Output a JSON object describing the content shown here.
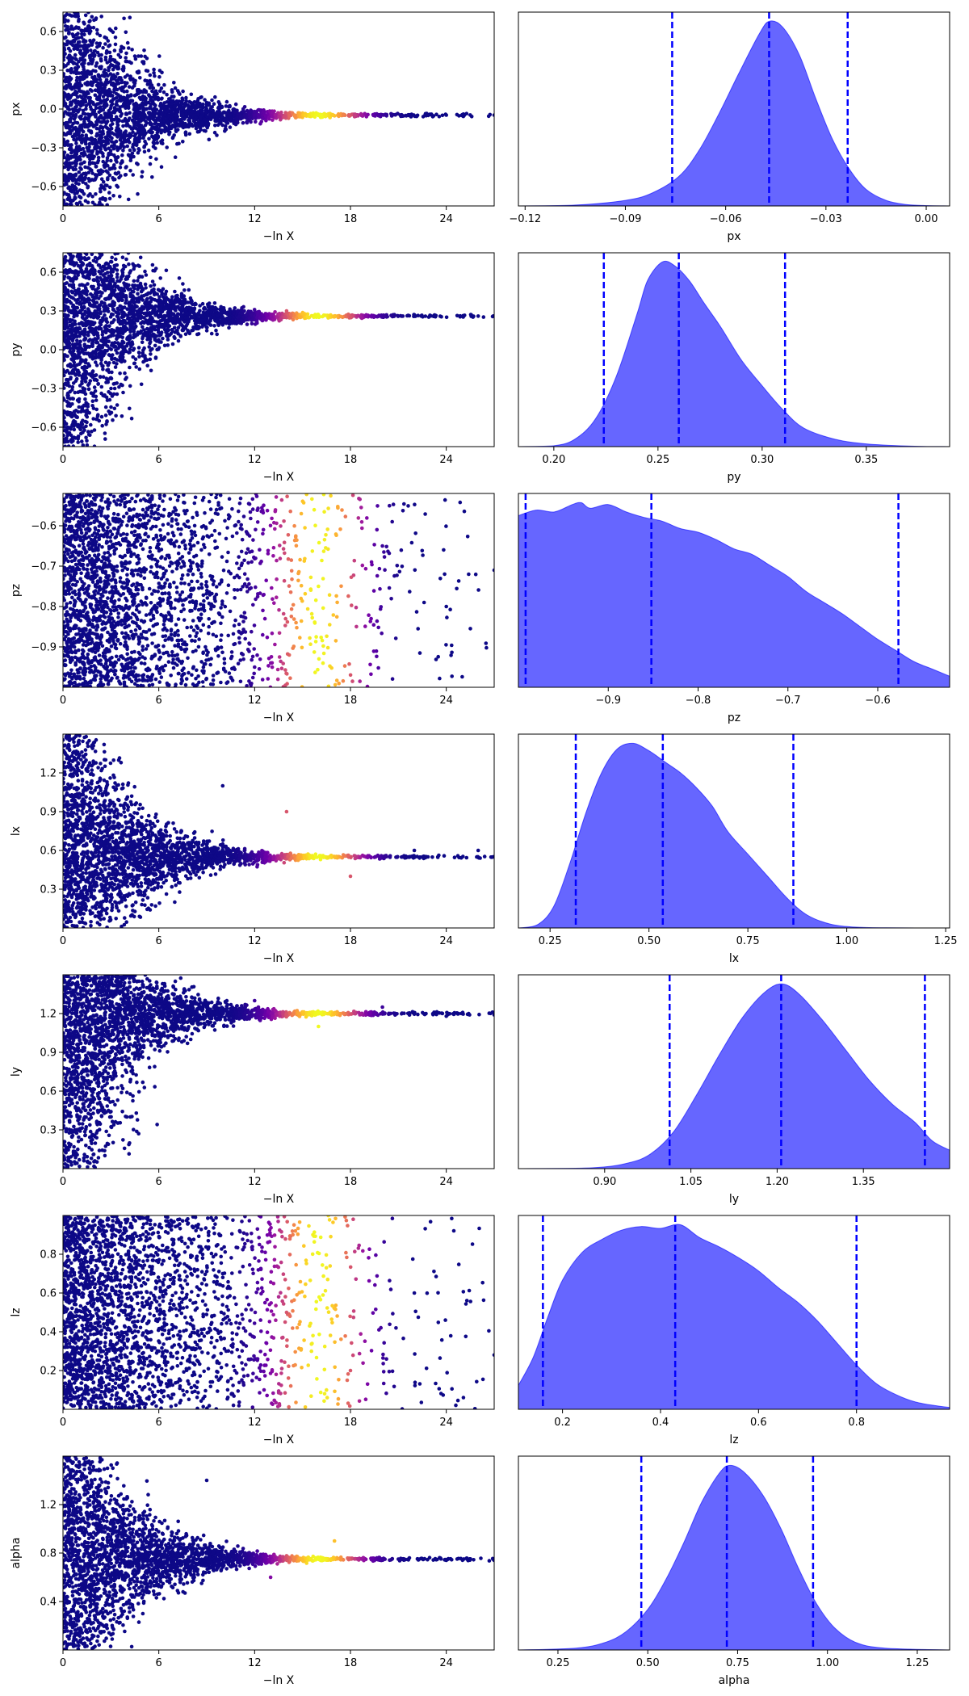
{
  "chart_data": [
    {
      "type": "scatter",
      "panel": "trace",
      "parameter": "px",
      "xlabel": "−ln X",
      "ylabel": "px",
      "xlim": [
        0,
        27
      ],
      "ylim": [
        -0.75,
        0.75
      ],
      "xticks": [
        0,
        6,
        12,
        18,
        24
      ],
      "yticks": [
        -0.6,
        -0.3,
        0.0,
        0.3,
        0.6
      ],
      "ytick_labels": [
        "−0.6",
        "−0.3",
        "0.0",
        "0.3",
        "0.6"
      ],
      "center": -0.047,
      "colormap": "plasma",
      "weight_peak_x": 16,
      "points": [
        [
          0.5,
          0.62
        ],
        [
          1.2,
          -0.55
        ],
        [
          2.0,
          0.45
        ],
        [
          3.0,
          -0.4
        ],
        [
          4.5,
          0.2
        ],
        [
          6.0,
          -0.12
        ],
        [
          9.0,
          0.05
        ],
        [
          12.0,
          -0.02
        ],
        [
          16.0,
          -0.05
        ],
        [
          20.0,
          -0.045
        ],
        [
          24.0,
          -0.047
        ],
        [
          27.0,
          -0.047
        ]
      ]
    },
    {
      "type": "area",
      "panel": "marginal",
      "parameter": "px",
      "xlabel": "px",
      "xlim": [
        -0.122,
        0.007
      ],
      "xticks": [
        -0.12,
        -0.09,
        -0.06,
        -0.03,
        0.0
      ],
      "xtick_labels": [
        "−0.12",
        "−0.09",
        "−0.06",
        "−0.03",
        "0.00"
      ],
      "quantiles": [
        -0.076,
        -0.047,
        -0.0235
      ],
      "fill_color": "#0000ff",
      "line_color": "#0000ff",
      "x": [
        -0.122,
        -0.105,
        -0.09,
        -0.082,
        -0.074,
        -0.068,
        -0.062,
        -0.056,
        -0.05,
        -0.047,
        -0.043,
        -0.038,
        -0.033,
        -0.028,
        -0.023,
        -0.018,
        -0.012,
        -0.006,
        0.0,
        0.007
      ],
      "density": [
        0,
        0.005,
        0.03,
        0.07,
        0.16,
        0.3,
        0.5,
        0.72,
        0.93,
        1.0,
        0.97,
        0.82,
        0.58,
        0.36,
        0.2,
        0.09,
        0.03,
        0.008,
        0.002,
        0
      ]
    },
    {
      "type": "scatter",
      "panel": "trace",
      "parameter": "py",
      "xlabel": "−ln X",
      "ylabel": "py",
      "xlim": [
        0,
        27
      ],
      "ylim": [
        -0.75,
        0.75
      ],
      "xticks": [
        0,
        6,
        12,
        18,
        24
      ],
      "yticks": [
        -0.6,
        -0.3,
        0.0,
        0.3,
        0.6
      ],
      "ytick_labels": [
        "−0.6",
        "−0.3",
        "0.0",
        "0.3",
        "0.6"
      ],
      "center": 0.26,
      "colormap": "plasma",
      "weight_peak_x": 16,
      "points": [
        [
          0.5,
          -0.6
        ],
        [
          1.0,
          0.7
        ],
        [
          2.0,
          -0.2
        ],
        [
          3.0,
          0.6
        ],
        [
          5.0,
          0.1
        ],
        [
          7.0,
          0.45
        ],
        [
          10.0,
          0.2
        ],
        [
          14.0,
          0.3
        ],
        [
          18.0,
          0.25
        ],
        [
          22.0,
          0.27
        ],
        [
          26.0,
          0.26
        ]
      ]
    },
    {
      "type": "area",
      "panel": "marginal",
      "parameter": "py",
      "xlabel": "py",
      "xlim": [
        0.183,
        0.39
      ],
      "xticks": [
        0.2,
        0.25,
        0.3,
        0.35
      ],
      "xtick_labels": [
        "0.20",
        "0.25",
        "0.30",
        "0.35"
      ],
      "quantiles": [
        0.224,
        0.26,
        0.311
      ],
      "fill_color": "#0000ff",
      "line_color": "#0000ff",
      "x": [
        0.183,
        0.2,
        0.21,
        0.22,
        0.23,
        0.24,
        0.245,
        0.252,
        0.258,
        0.265,
        0.272,
        0.28,
        0.29,
        0.3,
        0.31,
        0.32,
        0.335,
        0.35,
        0.37,
        0.39
      ],
      "density": [
        0,
        0.005,
        0.04,
        0.15,
        0.38,
        0.72,
        0.9,
        1.0,
        0.98,
        0.9,
        0.78,
        0.65,
        0.47,
        0.33,
        0.2,
        0.1,
        0.04,
        0.015,
        0.003,
        0
      ]
    },
    {
      "type": "scatter",
      "panel": "trace",
      "parameter": "pz",
      "xlabel": "−ln X",
      "ylabel": "pz",
      "xlim": [
        0,
        27
      ],
      "ylim": [
        -1.0,
        -0.52
      ],
      "xticks": [
        0,
        6,
        12,
        18,
        24
      ],
      "yticks": [
        -0.9,
        -0.8,
        -0.7,
        -0.6
      ],
      "ytick_labels": [
        "−0.9",
        "−0.8",
        "−0.7",
        "−0.6"
      ],
      "colormap": "plasma",
      "weight_peak_x": 16,
      "points": [
        [
          1.0,
          -0.6
        ],
        [
          4.0,
          -0.85
        ],
        [
          8.0,
          -0.7
        ],
        [
          12.0,
          -0.95
        ],
        [
          16.0,
          -0.75
        ],
        [
          20.0,
          -0.65
        ],
        [
          24.0,
          -0.8
        ],
        [
          27.0,
          -0.71
        ]
      ]
    },
    {
      "type": "area",
      "panel": "marginal",
      "parameter": "pz",
      "xlabel": "pz",
      "xlim": [
        -1.0,
        -0.52
      ],
      "xticks": [
        -0.9,
        -0.8,
        -0.7,
        -0.6
      ],
      "xtick_labels": [
        "−0.9",
        "−0.8",
        "−0.7",
        "−0.6"
      ],
      "quantiles": [
        -0.992,
        -0.852,
        -0.577
      ],
      "fill_color": "#0000ff",
      "line_color": "#0000ff",
      "x": [
        -1.0,
        -0.98,
        -0.96,
        -0.94,
        -0.93,
        -0.92,
        -0.9,
        -0.88,
        -0.86,
        -0.84,
        -0.82,
        -0.8,
        -0.78,
        -0.76,
        -0.74,
        -0.72,
        -0.7,
        -0.68,
        -0.66,
        -0.64,
        -0.62,
        -0.6,
        -0.58,
        -0.56,
        -0.54,
        -0.52
      ],
      "density": [
        0.93,
        0.96,
        0.95,
        0.99,
        1.0,
        0.97,
        0.99,
        0.95,
        0.92,
        0.9,
        0.86,
        0.84,
        0.8,
        0.75,
        0.72,
        0.66,
        0.6,
        0.52,
        0.46,
        0.4,
        0.33,
        0.26,
        0.2,
        0.14,
        0.1,
        0.06
      ]
    },
    {
      "type": "scatter",
      "panel": "trace",
      "parameter": "lx",
      "xlabel": "−ln X",
      "ylabel": "lx",
      "xlim": [
        0,
        27
      ],
      "ylim": [
        0.0,
        1.5
      ],
      "xticks": [
        0,
        6,
        12,
        18,
        24
      ],
      "yticks": [
        0.3,
        0.6,
        0.9,
        1.2
      ],
      "ytick_labels": [
        "0.3",
        "0.6",
        "0.9",
        "1.2"
      ],
      "center": 0.55,
      "colormap": "plasma",
      "weight_peak_x": 16,
      "points": [
        [
          0.5,
          0.05
        ],
        [
          1.0,
          1.45
        ],
        [
          4.0,
          1.0
        ],
        [
          7.0,
          0.2
        ],
        [
          10.0,
          1.1
        ],
        [
          14.0,
          0.9
        ],
        [
          18.0,
          0.4
        ],
        [
          22.0,
          0.6
        ],
        [
          26.0,
          0.6
        ]
      ]
    },
    {
      "type": "area",
      "panel": "marginal",
      "parameter": "lx",
      "xlabel": "lx",
      "xlim": [
        0.17,
        1.26
      ],
      "xticks": [
        0.25,
        0.5,
        0.75,
        1.0,
        1.25
      ],
      "xtick_labels": [
        "0.25",
        "0.50",
        "0.75",
        "1.00",
        "1.25"
      ],
      "quantiles": [
        0.315,
        0.535,
        0.865
      ],
      "fill_color": "#0000ff",
      "line_color": "#0000ff",
      "x": [
        0.17,
        0.22,
        0.26,
        0.3,
        0.34,
        0.38,
        0.42,
        0.46,
        0.5,
        0.54,
        0.58,
        0.62,
        0.66,
        0.7,
        0.75,
        0.8,
        0.85,
        0.9,
        0.96,
        1.02,
        1.1,
        1.26
      ],
      "density": [
        0,
        0.02,
        0.12,
        0.35,
        0.62,
        0.84,
        0.97,
        1.0,
        0.96,
        0.9,
        0.84,
        0.76,
        0.66,
        0.52,
        0.4,
        0.28,
        0.16,
        0.07,
        0.02,
        0.005,
        0.001,
        0
      ]
    },
    {
      "type": "scatter",
      "panel": "trace",
      "parameter": "ly",
      "xlabel": "−ln X",
      "ylabel": "ly",
      "xlim": [
        0,
        27
      ],
      "ylim": [
        0.0,
        1.5
      ],
      "xticks": [
        0,
        6,
        12,
        18,
        24
      ],
      "yticks": [
        0.3,
        0.6,
        0.9,
        1.2
      ],
      "ytick_labels": [
        "0.3",
        "0.6",
        "0.9",
        "1.2"
      ],
      "center": 1.2,
      "colormap": "plasma",
      "weight_peak_x": 16,
      "points": [
        [
          0.5,
          0.05
        ],
        [
          2.0,
          1.45
        ],
        [
          4.0,
          0.4
        ],
        [
          8.0,
          1.0
        ],
        [
          12.0,
          1.3
        ],
        [
          16.0,
          1.1
        ],
        [
          20.0,
          1.25
        ],
        [
          24.0,
          1.18
        ],
        [
          27.0,
          1.19
        ]
      ]
    },
    {
      "type": "area",
      "panel": "marginal",
      "parameter": "ly",
      "xlabel": "ly",
      "xlim": [
        0.75,
        1.5
      ],
      "xticks": [
        0.9,
        1.05,
        1.2,
        1.35
      ],
      "xtick_labels": [
        "0.90",
        "1.05",
        "1.20",
        "1.35"
      ],
      "quantiles": [
        1.013,
        1.207,
        1.457
      ],
      "fill_color": "#0000ff",
      "line_color": "#0000ff",
      "x": [
        0.75,
        0.88,
        0.94,
        0.98,
        1.02,
        1.06,
        1.1,
        1.14,
        1.18,
        1.21,
        1.24,
        1.28,
        1.32,
        1.36,
        1.4,
        1.44,
        1.47,
        1.5
      ],
      "density": [
        0,
        0.005,
        0.03,
        0.08,
        0.2,
        0.4,
        0.62,
        0.82,
        0.96,
        1.0,
        0.94,
        0.8,
        0.64,
        0.48,
        0.35,
        0.25,
        0.15,
        0.1
      ]
    },
    {
      "type": "scatter",
      "panel": "trace",
      "parameter": "lz",
      "xlabel": "−ln X",
      "ylabel": "lz",
      "xlim": [
        0,
        27
      ],
      "ylim": [
        0.0,
        1.0
      ],
      "xticks": [
        0,
        6,
        12,
        18,
        24
      ],
      "yticks": [
        0.2,
        0.4,
        0.6,
        0.8
      ],
      "ytick_labels": [
        "0.2",
        "0.4",
        "0.6",
        "0.8"
      ],
      "colormap": "plasma",
      "weight_peak_x": 16,
      "points": [
        [
          0.5,
          0.05
        ],
        [
          2.0,
          0.95
        ],
        [
          6.0,
          0.3
        ],
        [
          10.0,
          0.7
        ],
        [
          14.0,
          0.5
        ],
        [
          18.0,
          0.2
        ],
        [
          22.0,
          0.6
        ],
        [
          27.0,
          0.28
        ]
      ]
    },
    {
      "type": "area",
      "panel": "marginal",
      "parameter": "lz",
      "xlabel": "lz",
      "xlim": [
        0.11,
        0.99
      ],
      "xticks": [
        0.2,
        0.4,
        0.6,
        0.8
      ],
      "xtick_labels": [
        "0.2",
        "0.4",
        "0.6",
        "0.8"
      ],
      "quantiles": [
        0.16,
        0.43,
        0.8
      ],
      "fill_color": "#0000ff",
      "line_color": "#0000ff",
      "x": [
        0.11,
        0.14,
        0.17,
        0.2,
        0.24,
        0.28,
        0.32,
        0.36,
        0.4,
        0.44,
        0.48,
        0.52,
        0.56,
        0.6,
        0.64,
        0.68,
        0.72,
        0.76,
        0.8,
        0.84,
        0.88,
        0.92,
        0.96,
        0.99
      ],
      "density": [
        0.13,
        0.28,
        0.5,
        0.7,
        0.85,
        0.92,
        0.97,
        0.99,
        0.98,
        1.0,
        0.93,
        0.88,
        0.82,
        0.75,
        0.66,
        0.58,
        0.48,
        0.36,
        0.24,
        0.14,
        0.08,
        0.04,
        0.02,
        0.01
      ]
    },
    {
      "type": "scatter",
      "panel": "trace",
      "parameter": "alpha",
      "xlabel": "−ln X",
      "ylabel": "alpha",
      "xlim": [
        0,
        27
      ],
      "ylim": [
        0.0,
        1.6
      ],
      "xticks": [
        0,
        6,
        12,
        18,
        24
      ],
      "yticks": [
        0.4,
        0.8,
        1.2
      ],
      "ytick_labels": [
        "0.4",
        "0.8",
        "1.2"
      ],
      "center": 0.75,
      "colormap": "plasma",
      "weight_peak_x": 16,
      "points": [
        [
          0.5,
          0.05
        ],
        [
          1.5,
          1.55
        ],
        [
          5.0,
          0.3
        ],
        [
          9.0,
          1.4
        ],
        [
          13.0,
          0.6
        ],
        [
          17.0,
          0.9
        ],
        [
          21.0,
          0.75
        ],
        [
          24.0,
          0.74
        ],
        [
          27.0,
          0.74
        ]
      ]
    },
    {
      "type": "area",
      "panel": "marginal",
      "parameter": "alpha",
      "xlabel": "alpha",
      "xlim": [
        0.14,
        1.34
      ],
      "xticks": [
        0.25,
        0.5,
        0.75,
        1.0,
        1.25
      ],
      "xtick_labels": [
        "0.25",
        "0.50",
        "0.75",
        "1.00",
        "1.25"
      ],
      "quantiles": [
        0.482,
        0.72,
        0.96
      ],
      "fill_color": "#0000ff",
      "line_color": "#0000ff",
      "x": [
        0.14,
        0.3,
        0.38,
        0.44,
        0.5,
        0.55,
        0.6,
        0.65,
        0.7,
        0.73,
        0.77,
        0.82,
        0.87,
        0.92,
        0.97,
        1.02,
        1.08,
        1.16,
        1.34
      ],
      "density": [
        0,
        0.01,
        0.04,
        0.1,
        0.22,
        0.38,
        0.58,
        0.8,
        0.96,
        1.0,
        0.96,
        0.84,
        0.66,
        0.44,
        0.25,
        0.12,
        0.04,
        0.01,
        0
      ]
    }
  ]
}
